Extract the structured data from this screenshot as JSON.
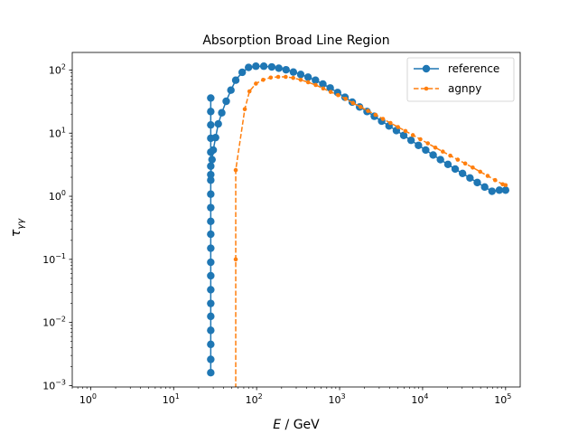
{
  "chart_data": {
    "type": "line",
    "title": "Absorption Broad Line Region",
    "xlabel": {
      "italic": "E",
      "unit": " / GeV"
    },
    "ylabel": {
      "base": "τ",
      "sub": "γγ"
    },
    "xscale": "log",
    "yscale": "log",
    "xlim": [
      0.6,
      150000
    ],
    "ylim": [
      0.00095,
      190
    ],
    "x_ticks": [
      {
        "value": 1,
        "base": "10",
        "exp": "0"
      },
      {
        "value": 10,
        "base": "10",
        "exp": "1"
      },
      {
        "value": 100,
        "base": "10",
        "exp": "2"
      },
      {
        "value": 1000,
        "base": "10",
        "exp": "3"
      },
      {
        "value": 10000,
        "base": "10",
        "exp": "4"
      },
      {
        "value": 100000,
        "base": "10",
        "exp": "5"
      }
    ],
    "y_ticks": [
      {
        "value": 0.001,
        "base": "10",
        "exp": "−3"
      },
      {
        "value": 0.01,
        "base": "10",
        "exp": "−2"
      },
      {
        "value": 0.1,
        "base": "10",
        "exp": "−1"
      },
      {
        "value": 1,
        "base": "10",
        "exp": "0"
      },
      {
        "value": 10,
        "base": "10",
        "exp": "1"
      },
      {
        "value": 100,
        "base": "10",
        "exp": "2"
      }
    ],
    "grid": false,
    "legend": "top-right",
    "series": [
      {
        "name": "reference",
        "color": "#1f77b4",
        "linestyle": "solid",
        "marker": "circle",
        "x": [
          28.0,
          28.0,
          28.0,
          28.0,
          28.0,
          28.0,
          28.0,
          28.0,
          28.0,
          28.0,
          28.0,
          28.0,
          28.0,
          28.0,
          28.0,
          28.0,
          28.0,
          28.0,
          28.0,
          28.0,
          28.0,
          28.0,
          29.0,
          30.0,
          32.0,
          34.5,
          38.0,
          43.0,
          49.0,
          56.0,
          67.0,
          80.0,
          98.0,
          122,
          152,
          185,
          226,
          277,
          340,
          417,
          512,
          628,
          770,
          945,
          1160,
          1420,
          1740,
          2140,
          2620,
          3210,
          3940,
          4830,
          5920,
          7260,
          8910,
          10900,
          13400,
          16400,
          20200,
          24700,
          30300,
          37200,
          45600,
          56000,
          68600,
          84100,
          100000
        ],
        "y": [
          0.0016,
          0.0026,
          0.0045,
          0.0075,
          0.0125,
          0.02,
          0.033,
          0.055,
          0.09,
          0.15,
          0.25,
          0.4,
          0.66,
          1.08,
          1.8,
          3.0,
          5.0,
          8.3,
          13.5,
          22.0,
          36.0,
          2.2,
          3.8,
          5.4,
          8.5,
          14.0,
          21.0,
          32.0,
          48.0,
          69.0,
          92.0,
          110,
          115,
          115,
          112,
          107,
          101,
          93,
          85,
          77,
          69,
          60,
          52,
          44,
          37,
          31,
          26,
          22,
          18.5,
          15.5,
          13.0,
          11.0,
          9.2,
          7.7,
          6.4,
          5.4,
          4.5,
          3.8,
          3.2,
          2.7,
          2.3,
          1.95,
          1.65,
          1.4,
          1.2,
          1.25,
          1.25
        ]
      },
      {
        "name": "agnpy",
        "color": "#ff7f0e",
        "linestyle": "dashed",
        "marker": "point",
        "x": [
          56.0,
          56.0,
          56.0,
          72.0,
          82.0,
          98.0,
          120,
          148,
          182,
          224,
          276,
          340,
          418,
          515,
          634,
          780,
          960,
          1180,
          1450,
          1790,
          2200,
          2710,
          3330,
          4100,
          5050,
          6210,
          7640,
          9400,
          11570,
          14240,
          17520,
          21560,
          26530,
          32650,
          40170,
          49430,
          60830,
          74850,
          92100,
          100000
        ],
        "y": [
          0.0009,
          0.1,
          2.6,
          24.0,
          46.0,
          61.0,
          70.0,
          76.0,
          78.0,
          78.0,
          75.0,
          70.0,
          64.0,
          58.0,
          51.0,
          45.0,
          40.0,
          35.0,
          30.0,
          26.0,
          22.5,
          19.5,
          16.8,
          14.5,
          12.5,
          10.8,
          9.3,
          8.0,
          6.9,
          5.9,
          5.1,
          4.4,
          3.8,
          3.3,
          2.85,
          2.45,
          2.1,
          1.8,
          1.55,
          1.5
        ]
      }
    ]
  }
}
